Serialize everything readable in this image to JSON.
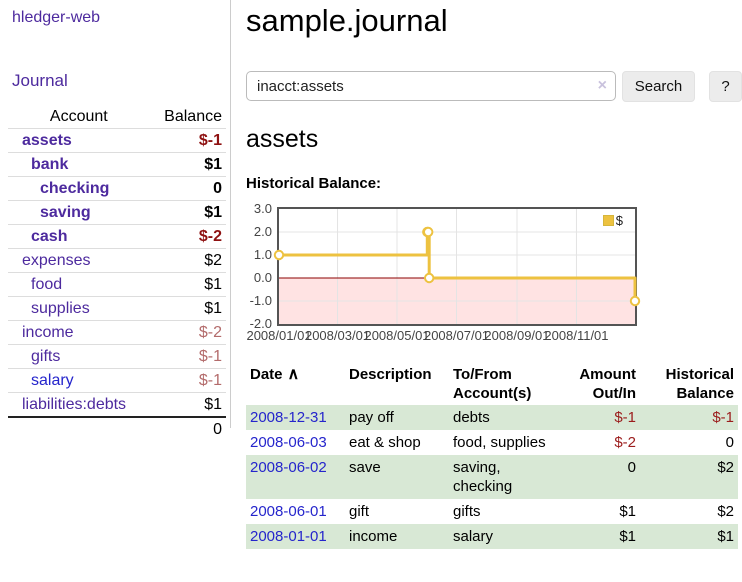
{
  "colors": {
    "link_purple": "#4d2a9e",
    "link_blue": "#2525cc",
    "negative_bold_red": "#8e1111",
    "negative_muted_red": "#b36b6b",
    "negative_table_red": "#9b1c1c",
    "row_green": "#d8e8d5",
    "chart_series_yellow": "#edc240",
    "chart_negative_fill": "#ffd9d9",
    "chart_zero_line": "#8b0000",
    "chart_border": "#545454",
    "button_bg": "#ececec"
  },
  "icons": {
    "sort_ascending": "∧",
    "clear_search": "×"
  },
  "sidebar": {
    "app_title": "hledger-web",
    "journal_label": "Journal",
    "accounts": {
      "header_account": "Account",
      "header_balance": "Balance",
      "rows": [
        {
          "name": "assets",
          "balance": "$-1",
          "level": 1,
          "in_account": true,
          "negative": "bold"
        },
        {
          "name": "bank",
          "balance": "$1",
          "level": 2,
          "in_account": true,
          "negative": ""
        },
        {
          "name": "checking",
          "balance": "0",
          "level": 3,
          "in_account": true,
          "negative": ""
        },
        {
          "name": "saving",
          "balance": "$1",
          "level": 3,
          "in_account": true,
          "negative": ""
        },
        {
          "name": "cash",
          "balance": "$-2",
          "level": 2,
          "in_account": true,
          "negative": "bold"
        },
        {
          "name": "expenses",
          "balance": "$2",
          "level": 1,
          "in_account": false,
          "negative": ""
        },
        {
          "name": "food",
          "balance": "$1",
          "level": 2,
          "in_account": false,
          "negative": ""
        },
        {
          "name": "supplies",
          "balance": "$1",
          "level": 2,
          "in_account": false,
          "negative": ""
        },
        {
          "name": "income",
          "balance": "$-2",
          "level": 1,
          "in_account": false,
          "negative": "muted"
        },
        {
          "name": "gifts",
          "balance": "$-1",
          "level": 2,
          "in_account": false,
          "negative": "muted"
        },
        {
          "name": "salary",
          "balance": "$-1",
          "level": 2,
          "in_account": false,
          "negative": "muted",
          "link_color": "blue"
        },
        {
          "name": "liabilities:debts",
          "balance": "$1",
          "level": 1,
          "in_account": false,
          "negative": ""
        }
      ],
      "total": "0"
    }
  },
  "main": {
    "title": "sample.journal",
    "search": {
      "value": "inacct:assets",
      "button_label": "Search",
      "help_label": "?"
    },
    "account_heading": "assets",
    "chart_label": "Historical Balance:"
  },
  "chart_data": {
    "type": "line",
    "step": true,
    "title": "Historical Balance:",
    "series": [
      {
        "name": "$",
        "color": "#edc240",
        "points": [
          [
            "2008-01-01",
            1
          ],
          [
            "2008-06-01",
            2
          ],
          [
            "2008-06-02",
            2
          ],
          [
            "2008-06-03",
            0
          ],
          [
            "2008-12-31",
            -1
          ]
        ]
      }
    ],
    "x_range": [
      "2008-01-01",
      "2008-12-31"
    ],
    "x_ticks": [
      "2008/01/01",
      "2008/03/01",
      "2008/05/01",
      "2008/07/01",
      "2008/09/01",
      "2008/11/01"
    ],
    "y_ticks": [
      "3.0",
      "2.0",
      "1.0",
      "0.0",
      "-1.0",
      "-2.0"
    ],
    "ylim": [
      -2,
      3
    ],
    "grid": true,
    "negative_region_shaded": true,
    "legend": {
      "label": "$",
      "position": "top-right"
    }
  },
  "transactions": {
    "headers": [
      {
        "id": "date",
        "line1": "Date",
        "line2": "",
        "sortable": true
      },
      {
        "id": "description",
        "line1": "Description",
        "line2": ""
      },
      {
        "id": "accounts",
        "line1": "To/From",
        "line2": "Account(s)"
      },
      {
        "id": "amount",
        "line1": "Amount",
        "line2": "Out/In",
        "numeric": true
      },
      {
        "id": "balance",
        "line1": "Historical",
        "line2": "Balance",
        "numeric": true
      }
    ],
    "rows": [
      {
        "date": "2008-12-31",
        "description": "pay off",
        "accounts": "debts",
        "amount": "$-1",
        "amount_negative": true,
        "balance": "$-1",
        "balance_negative": true
      },
      {
        "date": "2008-06-03",
        "description": "eat & shop",
        "accounts": "food, supplies",
        "amount": "$-2",
        "amount_negative": true,
        "balance": "0",
        "balance_negative": false
      },
      {
        "date": "2008-06-02",
        "description": "save",
        "accounts": "saving, checking",
        "amount": "0",
        "amount_negative": false,
        "balance": "$2",
        "balance_negative": false
      },
      {
        "date": "2008-06-01",
        "description": "gift",
        "accounts": "gifts",
        "amount": "$1",
        "amount_negative": false,
        "balance": "$2",
        "balance_negative": false
      },
      {
        "date": "2008-01-01",
        "description": "income",
        "accounts": "salary",
        "amount": "$1",
        "amount_negative": false,
        "balance": "$1",
        "balance_negative": false
      }
    ]
  }
}
